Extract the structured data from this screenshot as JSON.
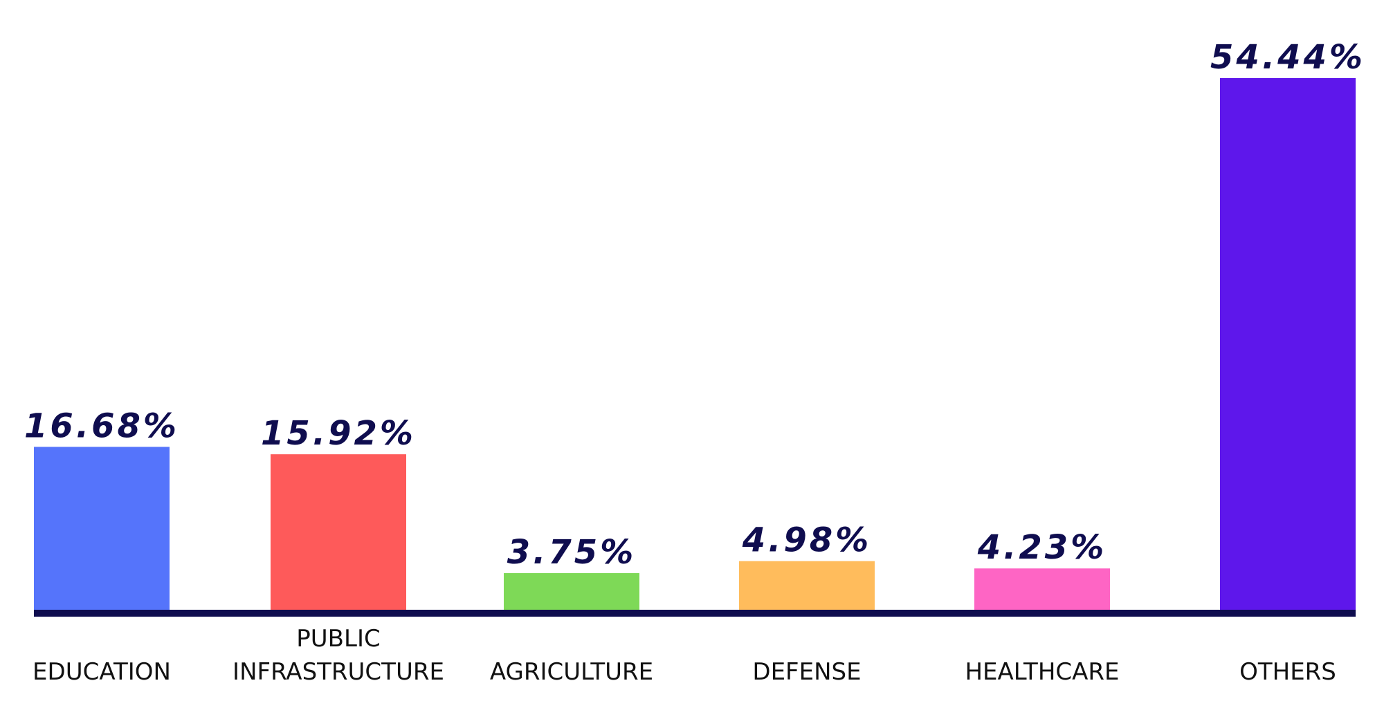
{
  "chart_data": {
    "type": "bar",
    "title": "",
    "xlabel": "",
    "ylabel": "",
    "ylim": [
      0,
      54.44
    ],
    "grid": false,
    "categories": [
      [
        "EDUCATION"
      ],
      [
        "PUBLIC",
        "INFRASTRUCTURE"
      ],
      [
        "AGRICULTURE"
      ],
      [
        "DEFENSE"
      ],
      [
        "HEALTHCARE"
      ],
      [
        "OTHERS"
      ]
    ],
    "values": [
      16.68,
      15.92,
      3.75,
      4.98,
      4.23,
      54.44
    ],
    "value_labels": [
      "16.68%",
      "15.92%",
      "3.75%",
      "4.98%",
      "4.23%",
      "54.44%"
    ],
    "colors": [
      "#5574fb",
      "#fe5a5a",
      "#7ed957",
      "#ffbc5c",
      "#fe65c4",
      "#5e17eb"
    ],
    "label_color": "#0f0d4f",
    "axis_color": "#0f0d4f"
  }
}
